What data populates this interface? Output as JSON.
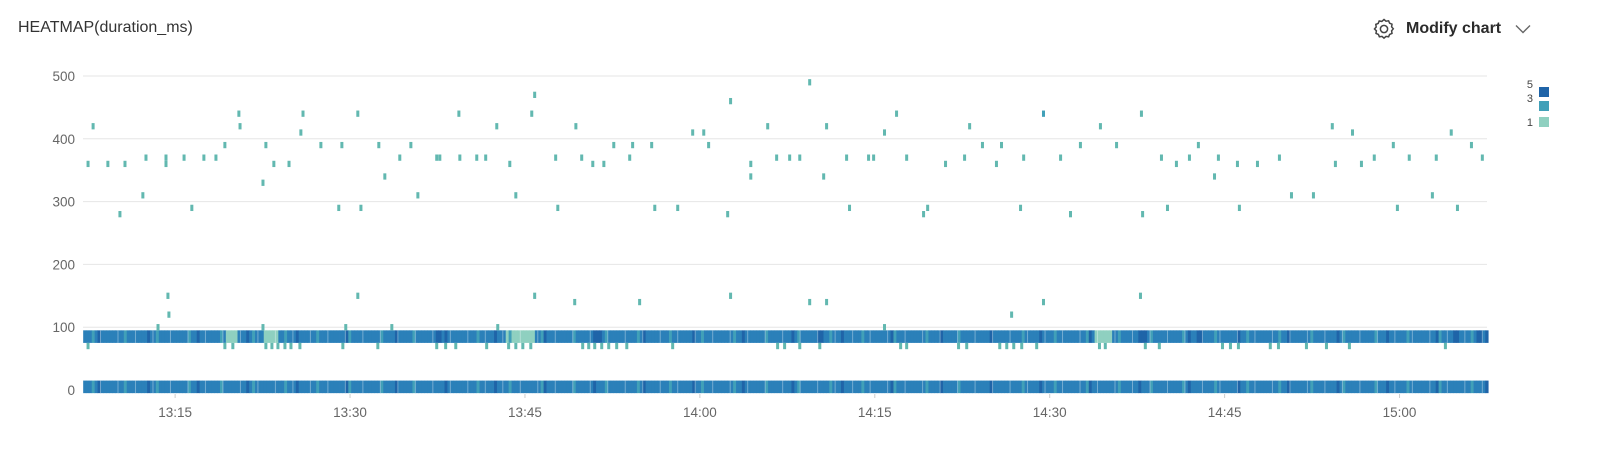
{
  "header": {
    "title": "HEATMAP(duration_ms)",
    "modify_label": "Modify chart",
    "modify_icon": "gear-icon",
    "dropdown_icon": "chevron-down-icon"
  },
  "chart_data": {
    "type": "heatmap",
    "title": "HEATMAP(duration_ms)",
    "xlabel": "",
    "ylabel": "",
    "x_range": [
      "13:07:06",
      "15:07:30"
    ],
    "ylim": [
      0,
      500
    ],
    "y_ticks": [
      "0",
      "100",
      "200",
      "300",
      "400",
      "500"
    ],
    "y_tick_values": [
      0,
      100,
      200,
      300,
      400,
      500
    ],
    "x_ticks": [
      "13:15",
      "13:30",
      "13:45",
      "14:00",
      "14:15",
      "14:30",
      "14:45",
      "15:00"
    ],
    "grid": true,
    "bucket_seconds": 15,
    "bucket_ms": 10,
    "legend": {
      "position": "right",
      "labels": [
        "5",
        "3",
        "1"
      ],
      "values": [
        5,
        3,
        1
      ]
    },
    "color_scale": {
      "1": "#8fd0c0",
      "2": "#62bcb5",
      "3": "#41a0b8",
      "4": "#2b80b9",
      "5": "#1f64a8"
    },
    "bands": [
      {
        "duration_bins": [
          80,
          90
        ],
        "count": 4,
        "light_ranges": [
          [
            "13:19:20",
            "13:20:10"
          ],
          [
            "13:22:30",
            "13:23:50"
          ],
          [
            "13:43:20",
            "13:45:50"
          ],
          [
            "14:33:50",
            "14:35:20"
          ]
        ],
        "dark_times": [
          "13:37:26",
          "13:51:20",
          "14:10:20",
          "14:38:00",
          "14:42:50",
          "15:04:40",
          "15:06:50"
        ]
      },
      {
        "duration_bins": [
          0,
          10
        ],
        "count": 4,
        "light_ranges": [],
        "dark_times": []
      }
    ],
    "points": [
      [
        "13:07:32",
        360,
        1
      ],
      [
        "13:07:58",
        420,
        1
      ],
      [
        "13:09:14",
        360,
        1
      ],
      [
        "13:10:16",
        280,
        1
      ],
      [
        "13:10:42",
        360,
        1
      ],
      [
        "13:12:14",
        310,
        1
      ],
      [
        "13:12:30",
        370,
        1
      ],
      [
        "13:13:32",
        100,
        1
      ],
      [
        "13:14:13",
        360,
        1
      ],
      [
        "13:14:13",
        370,
        1
      ],
      [
        "13:14:23",
        150,
        1
      ],
      [
        "13:14:28",
        120,
        1
      ],
      [
        "13:15:46",
        370,
        1
      ],
      [
        "13:16:26",
        290,
        1
      ],
      [
        "13:17:28",
        370,
        1
      ],
      [
        "13:18:30",
        370,
        1
      ],
      [
        "13:19:16",
        390,
        1
      ],
      [
        "13:20:28",
        440,
        1
      ],
      [
        "13:20:34",
        420,
        1
      ],
      [
        "13:22:32",
        330,
        1
      ],
      [
        "13:22:32",
        100,
        1
      ],
      [
        "13:22:47",
        390,
        1
      ],
      [
        "13:23:28",
        360,
        1
      ],
      [
        "13:24:46",
        360,
        1
      ],
      [
        "13:25:47",
        410,
        1
      ],
      [
        "13:25:58",
        440,
        1
      ],
      [
        "13:27:30",
        390,
        1
      ],
      [
        "13:29:02",
        290,
        1
      ],
      [
        "13:29:18",
        390,
        1
      ],
      [
        "13:29:38",
        100,
        1
      ],
      [
        "13:30:40",
        440,
        1
      ],
      [
        "13:30:40",
        150,
        1
      ],
      [
        "13:30:56",
        290,
        1
      ],
      [
        "13:32:28",
        390,
        1
      ],
      [
        "13:32:59",
        340,
        1
      ],
      [
        "13:33:35",
        100,
        1
      ],
      [
        "13:34:16",
        370,
        1
      ],
      [
        "13:35:13",
        390,
        1
      ],
      [
        "13:35:49",
        310,
        1
      ],
      [
        "13:37:26",
        370,
        1
      ],
      [
        "13:37:42",
        370,
        1
      ],
      [
        "13:39:20",
        440,
        1
      ],
      [
        "13:39:25",
        370,
        1
      ],
      [
        "13:40:52",
        370,
        1
      ],
      [
        "13:41:38",
        370,
        1
      ],
      [
        "13:42:35",
        420,
        1
      ],
      [
        "13:42:40",
        100,
        1
      ],
      [
        "13:43:42",
        360,
        1
      ],
      [
        "13:44:13",
        310,
        1
      ],
      [
        "13:45:35",
        440,
        1
      ],
      [
        "13:45:50",
        470,
        1
      ],
      [
        "13:45:50",
        150,
        1
      ],
      [
        "13:47:38",
        370,
        1
      ],
      [
        "13:47:49",
        290,
        1
      ],
      [
        "13:49:16",
        140,
        1
      ],
      [
        "13:49:22",
        420,
        1
      ],
      [
        "13:49:52",
        370,
        1
      ],
      [
        "13:50:49",
        360,
        1
      ],
      [
        "13:51:46",
        360,
        1
      ],
      [
        "13:52:37",
        390,
        1
      ],
      [
        "13:53:59",
        370,
        1
      ],
      [
        "13:54:14",
        390,
        1
      ],
      [
        "13:54:50",
        140,
        1
      ],
      [
        "13:55:52",
        390,
        1
      ],
      [
        "13:56:08",
        290,
        1
      ],
      [
        "13:58:06",
        290,
        1
      ],
      [
        "13:59:23",
        410,
        1
      ],
      [
        "14:00:20",
        410,
        1
      ],
      [
        "14:00:45",
        390,
        1
      ],
      [
        "14:02:23",
        280,
        1
      ],
      [
        "14:02:38",
        460,
        1
      ],
      [
        "14:02:38",
        150,
        1
      ],
      [
        "14:04:22",
        360,
        1
      ],
      [
        "14:04:22",
        340,
        1
      ],
      [
        "14:05:49",
        420,
        1
      ],
      [
        "14:06:35",
        370,
        1
      ],
      [
        "14:07:42",
        370,
        1
      ],
      [
        "14:08:34",
        370,
        1
      ],
      [
        "14:09:25",
        490,
        1
      ],
      [
        "14:09:25",
        140,
        1
      ],
      [
        "14:10:37",
        340,
        1
      ],
      [
        "14:10:52",
        420,
        1
      ],
      [
        "14:10:52",
        140,
        1
      ],
      [
        "14:12:35",
        370,
        1
      ],
      [
        "14:12:50",
        290,
        1
      ],
      [
        "14:14:28",
        370,
        1
      ],
      [
        "14:14:54",
        370,
        1
      ],
      [
        "14:15:50",
        410,
        1
      ],
      [
        "14:15:50",
        100,
        1
      ],
      [
        "14:16:52",
        440,
        1
      ],
      [
        "14:17:44",
        370,
        1
      ],
      [
        "14:19:11",
        280,
        1
      ],
      [
        "14:19:32",
        290,
        1
      ],
      [
        "14:21:04",
        360,
        1
      ],
      [
        "14:22:42",
        370,
        1
      ],
      [
        "14:23:08",
        420,
        1
      ],
      [
        "14:24:14",
        390,
        1
      ],
      [
        "14:25:26",
        360,
        1
      ],
      [
        "14:25:52",
        390,
        1
      ],
      [
        "14:26:44",
        120,
        1
      ],
      [
        "14:27:30",
        290,
        1
      ],
      [
        "14:27:46",
        370,
        1
      ],
      [
        "14:29:28",
        440,
        3
      ],
      [
        "14:29:28",
        140,
        1
      ],
      [
        "14:30:56",
        370,
        1
      ],
      [
        "14:31:47",
        280,
        1
      ],
      [
        "14:32:38",
        390,
        1
      ],
      [
        "14:34:21",
        420,
        1
      ],
      [
        "14:35:44",
        390,
        1
      ],
      [
        "14:37:47",
        150,
        1
      ],
      [
        "14:37:52",
        440,
        1
      ],
      [
        "14:37:58",
        280,
        1
      ],
      [
        "14:39:35",
        370,
        1
      ],
      [
        "14:40:06",
        290,
        1
      ],
      [
        "14:40:52",
        360,
        1
      ],
      [
        "14:41:59",
        370,
        1
      ],
      [
        "14:42:45",
        390,
        1
      ],
      [
        "14:44:08",
        340,
        1
      ],
      [
        "14:44:28",
        370,
        1
      ],
      [
        "14:46:06",
        360,
        1
      ],
      [
        "14:46:16",
        290,
        1
      ],
      [
        "14:47:49",
        360,
        1
      ],
      [
        "14:49:42",
        370,
        1
      ],
      [
        "14:50:44",
        310,
        1
      ],
      [
        "14:52:37",
        310,
        1
      ],
      [
        "14:54:14",
        420,
        1
      ],
      [
        "14:54:30",
        360,
        1
      ],
      [
        "14:55:58",
        410,
        1
      ],
      [
        "14:56:44",
        360,
        1
      ],
      [
        "14:57:50",
        370,
        1
      ],
      [
        "14:59:28",
        390,
        1
      ],
      [
        "14:59:49",
        290,
        1
      ],
      [
        "15:00:50",
        370,
        1
      ],
      [
        "15:02:49",
        310,
        1
      ],
      [
        "15:03:09",
        370,
        1
      ],
      [
        "15:04:26",
        410,
        1
      ],
      [
        "15:04:58",
        290,
        1
      ],
      [
        "15:06:10",
        390,
        1
      ],
      [
        "15:07:06",
        370,
        1
      ],
      [
        "13:07:32",
        70,
        1
      ],
      [
        "13:19:16",
        70,
        1
      ],
      [
        "13:19:57",
        70,
        1
      ],
      [
        "13:22:47",
        70,
        1
      ],
      [
        "13:23:18",
        70,
        1
      ],
      [
        "13:23:49",
        70,
        1
      ],
      [
        "13:24:25",
        70,
        1
      ],
      [
        "13:24:56",
        70,
        1
      ],
      [
        "13:25:42",
        70,
        1
      ],
      [
        "13:29:23",
        70,
        1
      ],
      [
        "13:32:23",
        70,
        1
      ],
      [
        "13:37:26",
        70,
        1
      ],
      [
        "13:38:12",
        70,
        1
      ],
      [
        "13:39:04",
        70,
        1
      ],
      [
        "13:41:43",
        70,
        1
      ],
      [
        "13:43:36",
        70,
        1
      ],
      [
        "13:44:13",
        70,
        1
      ],
      [
        "13:44:49",
        70,
        1
      ],
      [
        "13:45:30",
        70,
        1
      ],
      [
        "13:49:57",
        70,
        1
      ],
      [
        "13:50:28",
        70,
        1
      ],
      [
        "13:50:59",
        70,
        1
      ],
      [
        "13:51:35",
        70,
        1
      ],
      [
        "13:52:11",
        70,
        1
      ],
      [
        "13:52:52",
        70,
        1
      ],
      [
        "13:53:44",
        70,
        1
      ],
      [
        "13:57:40",
        70,
        1
      ],
      [
        "14:06:40",
        70,
        1
      ],
      [
        "14:07:16",
        70,
        1
      ],
      [
        "14:08:34",
        70,
        1
      ],
      [
        "14:10:17",
        70,
        1
      ],
      [
        "14:17:13",
        70,
        1
      ],
      [
        "14:17:44",
        70,
        1
      ],
      [
        "14:22:11",
        70,
        1
      ],
      [
        "14:22:53",
        70,
        1
      ],
      [
        "14:25:43",
        70,
        1
      ],
      [
        "14:26:19",
        70,
        1
      ],
      [
        "14:26:55",
        70,
        1
      ],
      [
        "14:27:36",
        70,
        1
      ],
      [
        "14:28:53",
        70,
        1
      ],
      [
        "14:34:16",
        70,
        1
      ],
      [
        "14:34:46",
        70,
        1
      ],
      [
        "14:38:12",
        70,
        1
      ],
      [
        "14:39:24",
        70,
        1
      ],
      [
        "14:44:49",
        70,
        1
      ],
      [
        "14:45:30",
        70,
        1
      ],
      [
        "14:46:11",
        70,
        1
      ],
      [
        "14:48:55",
        70,
        1
      ],
      [
        "14:49:37",
        70,
        1
      ],
      [
        "14:52:01",
        70,
        1
      ],
      [
        "14:53:44",
        70,
        1
      ],
      [
        "14:55:42",
        70,
        1
      ],
      [
        "15:03:56",
        70,
        1
      ]
    ]
  }
}
